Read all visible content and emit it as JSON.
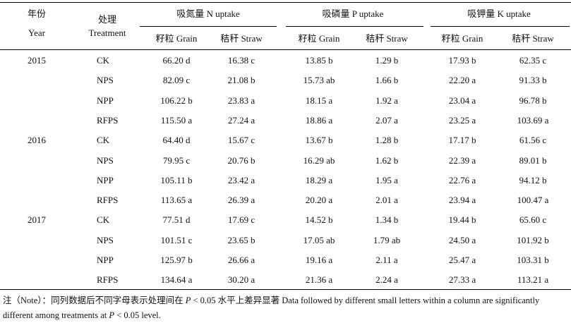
{
  "header": {
    "year": {
      "zh": "年份",
      "en": "Year"
    },
    "treatment": {
      "zh": "处理",
      "en": "Treatment"
    },
    "groups": [
      "吸氮量 N uptake",
      "吸磷量 P uptake",
      "吸钾量 K uptake"
    ],
    "subheaders": [
      "籽粒 Grain",
      "秸秆 Straw",
      "籽粒 Grain",
      "秸秆 Straw",
      "籽粒 Grain",
      "秸秆 Straw"
    ]
  },
  "table": {
    "groups": [
      {
        "year": "2015",
        "rows": [
          {
            "treatment": "CK",
            "cells": [
              "66.20 d",
              "16.38 c",
              "13.85 b",
              "1.29 b",
              "17.93 b",
              "62.35 c"
            ]
          },
          {
            "treatment": "NPS",
            "cells": [
              "82.09 c",
              "21.08 b",
              "15.73 ab",
              "1.66 b",
              "22.20 a",
              "91.33 b"
            ]
          },
          {
            "treatment": "NPP",
            "cells": [
              "106.22 b",
              "23.83 a",
              "18.15 a",
              "1.92 a",
              "23.04 a",
              "96.78 b"
            ]
          },
          {
            "treatment": "RFPS",
            "cells": [
              "115.50 a",
              "27.24 a",
              "18.86 a",
              "2.07 a",
              "23.25 a",
              "103.69 a"
            ]
          }
        ]
      },
      {
        "year": "2016",
        "rows": [
          {
            "treatment": "CK",
            "cells": [
              "64.40 d",
              "15.67 c",
              "13.67 b",
              "1.28 b",
              "17.17 b",
              "61.56 c"
            ]
          },
          {
            "treatment": "NPS",
            "cells": [
              "79.95 c",
              "20.76 b",
              "16.29 ab",
              "1.62 b",
              "22.39 a",
              "89.01 b"
            ]
          },
          {
            "treatment": "NPP",
            "cells": [
              "105.11 b",
              "23.42 a",
              "18.29 a",
              "1.95 a",
              "22.76 a",
              "94.12 b"
            ]
          },
          {
            "treatment": "RFPS",
            "cells": [
              "113.65 a",
              "26.39 a",
              "20.20 a",
              "2.01 a",
              "23.94 a",
              "100.47 a"
            ]
          }
        ]
      },
      {
        "year": "2017",
        "rows": [
          {
            "treatment": "CK",
            "cells": [
              "77.51 d",
              "17.69 c",
              "14.52 b",
              "1.34 b",
              "19.44 b",
              "65.60 c"
            ]
          },
          {
            "treatment": "NPS",
            "cells": [
              "101.51 c",
              "23.65 b",
              "17.05 ab",
              "1.79 ab",
              "24.50 a",
              "101.92 b"
            ]
          },
          {
            "treatment": "NPP",
            "cells": [
              "125.97 b",
              "26.66 a",
              "19.16 a",
              "2.11 a",
              "25.47 a",
              "103.31 b"
            ]
          },
          {
            "treatment": "RFPS",
            "cells": [
              "134.64 a",
              "30.20 a",
              "21.36 a",
              "2.24 a",
              "27.33 a",
              "113.21 a"
            ]
          }
        ]
      }
    ]
  },
  "note": {
    "label": "注（Note）：",
    "parts": [
      "同列数据后不同字母表示处理间在 ",
      "P",
      " < 0.05 水平上差异显著 Data followed by different small letters within a column are significantly different among treatments at ",
      "P",
      " < 0.05 level."
    ]
  }
}
